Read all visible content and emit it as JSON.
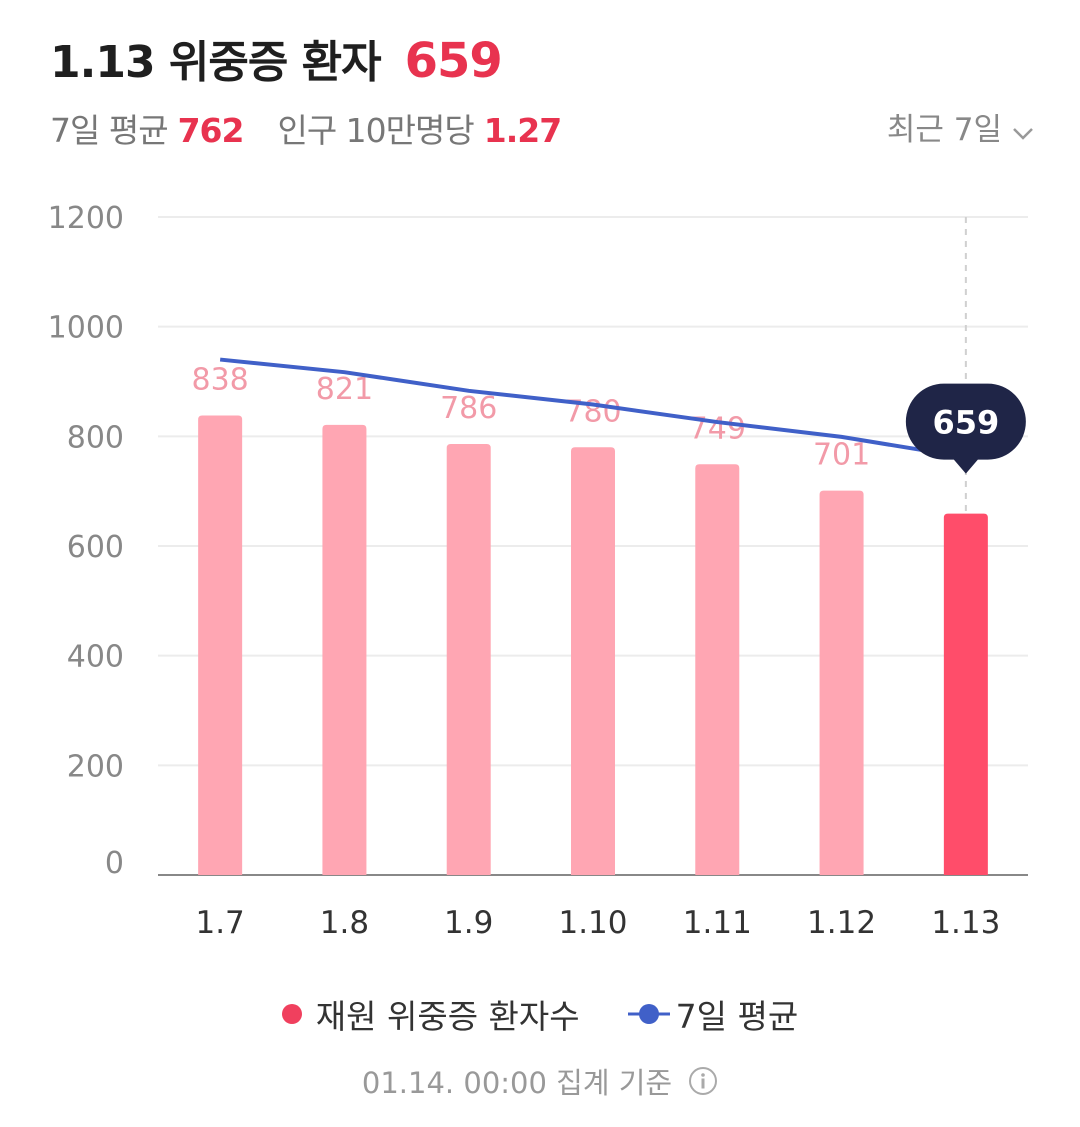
{
  "header": {
    "title": "1.13 위중증 환자",
    "value": "659",
    "avg_label": "7일 평균",
    "avg_value": "762",
    "per_label": "인구 10만명당",
    "per_value": "1.27",
    "period_label": "최근 7일",
    "period_icon": "chevron-down-icon"
  },
  "legend": {
    "bar_label": "재원 위중증 환자수",
    "line_label": "7일 평균"
  },
  "footer": {
    "text": "01.14. 00:00 집계 기준",
    "icon": "info-icon"
  },
  "colors": {
    "bar": "#ffa6b3",
    "bar_highlight": "#ff4d6a",
    "line": "#4060c8",
    "accent": "#e8334f",
    "tooltip_bg": "#1f2547"
  },
  "chart_data": {
    "type": "bar",
    "categories": [
      "1.7",
      "1.8",
      "1.9",
      "1.10",
      "1.11",
      "1.12",
      "1.13"
    ],
    "series": [
      {
        "name": "재원 위중증 환자수",
        "type": "bar",
        "values": [
          838,
          821,
          786,
          780,
          749,
          701,
          659
        ]
      },
      {
        "name": "7일 평균",
        "type": "line",
        "values": [
          940,
          917,
          883,
          858,
          826,
          799,
          762
        ]
      }
    ],
    "data_labels": [
      "838",
      "821",
      "786",
      "780",
      "749",
      "701",
      "659"
    ],
    "highlight_index": 6,
    "tooltip_value": "659",
    "yticks": [
      0,
      200,
      400,
      600,
      800,
      1000,
      1200
    ],
    "ylim": [
      0,
      1200
    ],
    "grid": true,
    "legend_position": "bottom"
  }
}
